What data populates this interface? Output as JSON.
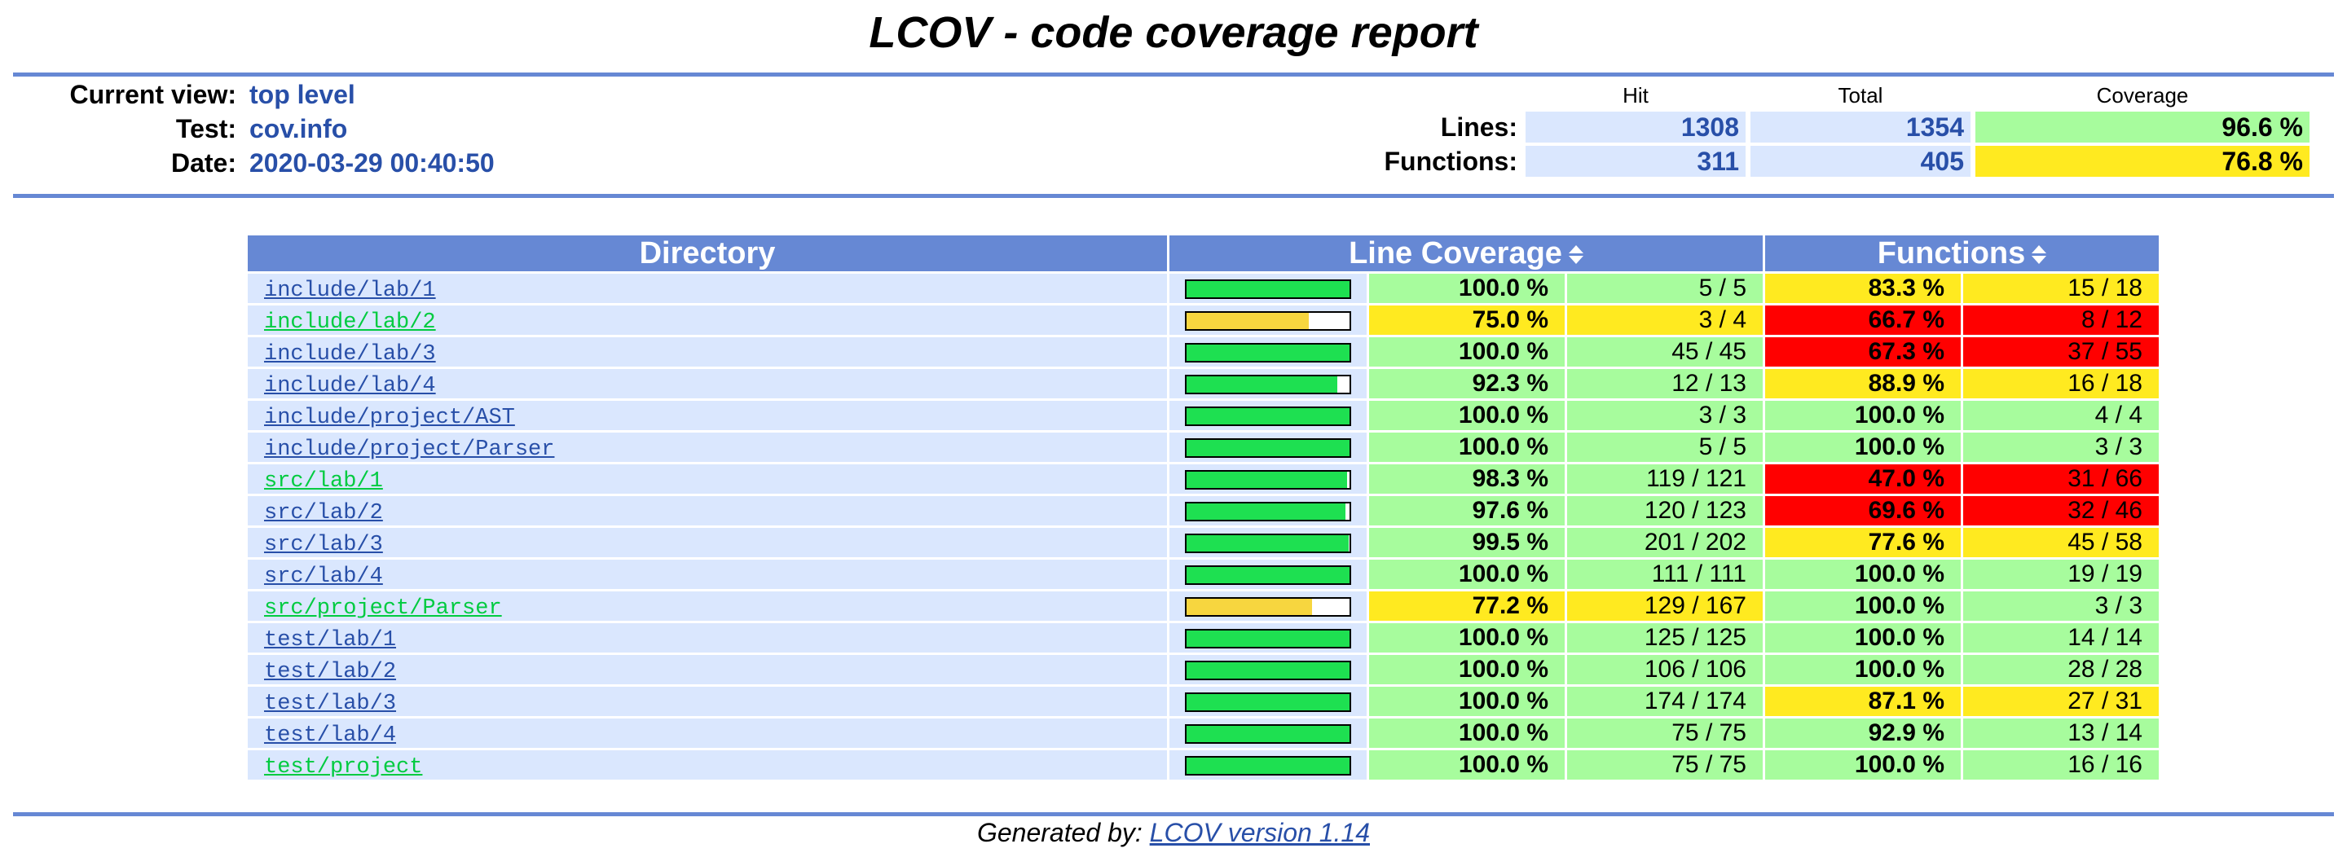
{
  "title": "LCOV - code coverage report",
  "header": {
    "current_view_label": "Current view:",
    "current_view": "top level",
    "test_label": "Test:",
    "test": "cov.info",
    "date_label": "Date:",
    "date": "2020-03-29 00:40:50"
  },
  "summary": {
    "col_hit": "Hit",
    "col_total": "Total",
    "col_coverage": "Coverage",
    "lines": {
      "label": "Lines:",
      "hit": "1308",
      "total": "1354",
      "coverage": "96.6 %"
    },
    "functions": {
      "label": "Functions:",
      "hit": "311",
      "total": "405",
      "coverage": "76.8 %"
    }
  },
  "table": {
    "col_directory": "Directory",
    "col_line_coverage": "Line Coverage",
    "col_functions": "Functions",
    "rows": [
      {
        "dir": "include/lab/1",
        "green": false,
        "line_fraction": 1.0,
        "line_pct": "100.0 %",
        "line_cnt": "5 / 5",
        "line_level": "Hi",
        "fn_pct": "83.3 %",
        "fn_cnt": "15 / 18",
        "fn_level": "Med"
      },
      {
        "dir": "include/lab/2",
        "green": true,
        "line_fraction": 0.75,
        "line_pct": "75.0 %",
        "line_cnt": "3 / 4",
        "line_level": "Med",
        "fn_pct": "66.7 %",
        "fn_cnt": "8 / 12",
        "fn_level": "Lo"
      },
      {
        "dir": "include/lab/3",
        "green": false,
        "line_fraction": 1.0,
        "line_pct": "100.0 %",
        "line_cnt": "45 / 45",
        "line_level": "Hi",
        "fn_pct": "67.3 %",
        "fn_cnt": "37 / 55",
        "fn_level": "Lo"
      },
      {
        "dir": "include/lab/4",
        "green": false,
        "line_fraction": 0.923,
        "line_pct": "92.3 %",
        "line_cnt": "12 / 13",
        "line_level": "Hi",
        "fn_pct": "88.9 %",
        "fn_cnt": "16 / 18",
        "fn_level": "Med"
      },
      {
        "dir": "include/project/AST",
        "green": false,
        "line_fraction": 1.0,
        "line_pct": "100.0 %",
        "line_cnt": "3 / 3",
        "line_level": "Hi",
        "fn_pct": "100.0 %",
        "fn_cnt": "4 / 4",
        "fn_level": "Hi"
      },
      {
        "dir": "include/project/Parser",
        "green": false,
        "line_fraction": 1.0,
        "line_pct": "100.0 %",
        "line_cnt": "5 / 5",
        "line_level": "Hi",
        "fn_pct": "100.0 %",
        "fn_cnt": "3 / 3",
        "fn_level": "Hi"
      },
      {
        "dir": "src/lab/1",
        "green": true,
        "line_fraction": 0.983,
        "line_pct": "98.3 %",
        "line_cnt": "119 / 121",
        "line_level": "Hi",
        "fn_pct": "47.0 %",
        "fn_cnt": "31 / 66",
        "fn_level": "Lo"
      },
      {
        "dir": "src/lab/2",
        "green": false,
        "line_fraction": 0.976,
        "line_pct": "97.6 %",
        "line_cnt": "120 / 123",
        "line_level": "Hi",
        "fn_pct": "69.6 %",
        "fn_cnt": "32 / 46",
        "fn_level": "Lo"
      },
      {
        "dir": "src/lab/3",
        "green": false,
        "line_fraction": 0.995,
        "line_pct": "99.5 %",
        "line_cnt": "201 / 202",
        "line_level": "Hi",
        "fn_pct": "77.6 %",
        "fn_cnt": "45 / 58",
        "fn_level": "Med"
      },
      {
        "dir": "src/lab/4",
        "green": false,
        "line_fraction": 1.0,
        "line_pct": "100.0 %",
        "line_cnt": "111 / 111",
        "line_level": "Hi",
        "fn_pct": "100.0 %",
        "fn_cnt": "19 / 19",
        "fn_level": "Hi"
      },
      {
        "dir": "src/project/Parser",
        "green": true,
        "line_fraction": 0.772,
        "line_pct": "77.2 %",
        "line_cnt": "129 / 167",
        "line_level": "Med",
        "fn_pct": "100.0 %",
        "fn_cnt": "3 / 3",
        "fn_level": "Hi"
      },
      {
        "dir": "test/lab/1",
        "green": false,
        "line_fraction": 1.0,
        "line_pct": "100.0 %",
        "line_cnt": "125 / 125",
        "line_level": "Hi",
        "fn_pct": "100.0 %",
        "fn_cnt": "14 / 14",
        "fn_level": "Hi"
      },
      {
        "dir": "test/lab/2",
        "green": false,
        "line_fraction": 1.0,
        "line_pct": "100.0 %",
        "line_cnt": "106 / 106",
        "line_level": "Hi",
        "fn_pct": "100.0 %",
        "fn_cnt": "28 / 28",
        "fn_level": "Hi"
      },
      {
        "dir": "test/lab/3",
        "green": false,
        "line_fraction": 1.0,
        "line_pct": "100.0 %",
        "line_cnt": "174 / 174",
        "line_level": "Hi",
        "fn_pct": "87.1 %",
        "fn_cnt": "27 / 31",
        "fn_level": "Med"
      },
      {
        "dir": "test/lab/4",
        "green": false,
        "line_fraction": 1.0,
        "line_pct": "100.0 %",
        "line_cnt": "75 / 75",
        "line_level": "Hi",
        "fn_pct": "92.9 %",
        "fn_cnt": "13 / 14",
        "fn_level": "Hi"
      },
      {
        "dir": "test/project",
        "green": true,
        "line_fraction": 1.0,
        "line_pct": "100.0 %",
        "line_cnt": "75 / 75",
        "line_level": "Hi",
        "fn_pct": "100.0 %",
        "fn_cnt": "16 / 16",
        "fn_level": "Hi"
      }
    ]
  },
  "colors": {
    "bar_hi": "#1ee051",
    "bar_med": "#f7d63f",
    "hi": "#a7fc9d",
    "med": "#ffea20",
    "lo": "#ff0000",
    "header_blue": "#6688d4",
    "link_blue": "#284fa8"
  },
  "footer": {
    "prefix": "Generated by: ",
    "link": "LCOV version 1.14"
  }
}
